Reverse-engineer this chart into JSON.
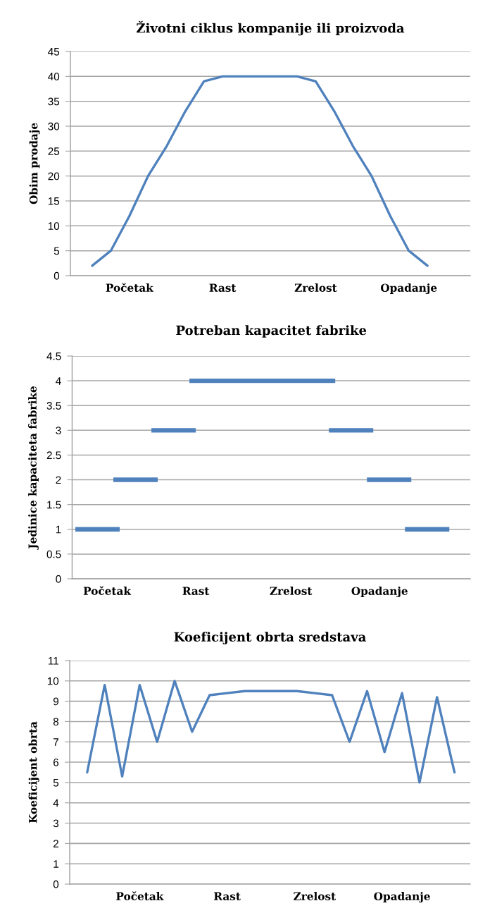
{
  "chart_data": [
    {
      "type": "line",
      "title": "Životni ciklus kompanije ili proizvoda",
      "ylabel": "Obim prodaje",
      "grid": "y",
      "ylim": [
        0,
        45
      ],
      "yticks": [
        0,
        5,
        10,
        15,
        20,
        25,
        30,
        35,
        40,
        45
      ],
      "categories": [
        null,
        null,
        "Početak",
        null,
        null,
        null,
        null,
        "Rast",
        null,
        null,
        null,
        null,
        "Zrelost",
        null,
        null,
        null,
        null,
        "Opadanje",
        null
      ],
      "series": [
        {
          "color": "#4f81bd",
          "values": [
            2,
            5,
            12,
            20,
            26,
            33,
            39,
            40,
            40,
            40,
            40,
            40,
            39,
            33,
            26,
            20,
            12,
            5,
            2
          ]
        }
      ]
    },
    {
      "type": "line",
      "title": "Potreban kapacitet fabrike",
      "ylabel": "Jedinice kapaciteta fabrike",
      "grid": "y",
      "ylim": [
        0,
        4.5
      ],
      "yticks": [
        0,
        0.5,
        1,
        1.5,
        2,
        2.5,
        3,
        3.5,
        4,
        4.5
      ],
      "categories": [
        null,
        null,
        null,
        null,
        null,
        "Početak",
        null,
        null,
        null,
        null,
        null,
        null,
        null,
        null,
        null,
        null,
        null,
        null,
        null,
        "Rast",
        null,
        null,
        null,
        null,
        null,
        null,
        null,
        null,
        null,
        null,
        null,
        null,
        null,
        null,
        "Zrelost",
        null,
        null,
        null,
        null,
        null,
        null,
        null,
        null,
        null,
        null,
        null,
        null,
        null,
        "Opadanje",
        null,
        null,
        null,
        null,
        null,
        null,
        null,
        null,
        null,
        null,
        null
      ],
      "series": [
        {
          "color": "#4f81bd",
          "values": [
            1,
            1,
            1,
            1,
            1,
            1,
            1,
            1,
            null,
            null,
            null,
            null,
            3,
            3,
            3,
            3,
            3,
            3,
            3,
            3,
            null,
            null,
            null,
            null,
            null,
            null,
            null,
            null,
            null,
            null,
            null,
            null,
            null,
            null,
            null,
            null,
            null,
            null,
            null,
            null,
            3,
            3,
            3,
            3,
            3,
            3,
            3,
            3,
            null,
            null,
            null,
            null,
            1,
            1,
            1,
            1,
            1,
            1,
            1,
            1
          ]
        },
        {
          "color": "#4f81bd",
          "values": [
            null,
            null,
            null,
            null,
            null,
            null,
            2,
            2,
            2,
            2,
            2,
            2,
            2,
            2,
            null,
            null,
            null,
            null,
            4,
            4,
            4,
            4,
            4,
            4,
            4,
            4,
            4,
            4,
            4,
            4,
            4,
            4,
            4,
            4,
            4,
            4,
            4,
            4,
            4,
            4,
            4,
            4,
            null,
            null,
            null,
            null,
            2,
            2,
            2,
            2,
            2,
            2,
            2,
            2,
            null,
            null,
            null,
            null,
            null,
            null
          ]
        }
      ]
    },
    {
      "type": "line",
      "title": "Koeficijent obrta sredstava",
      "ylabel": "Koeficijent obrta",
      "grid": "y",
      "ylim": [
        0,
        11
      ],
      "yticks": [
        0,
        1,
        2,
        3,
        4,
        5,
        6,
        7,
        8,
        9,
        10,
        11
      ],
      "categories": [
        null,
        null,
        null,
        "Početak",
        null,
        null,
        null,
        null,
        "Rast",
        null,
        null,
        null,
        null,
        "Zrelost",
        null,
        null,
        null,
        null,
        "Opadanje",
        null,
        null,
        null
      ],
      "series": [
        {
          "color": "#4f81bd",
          "values": [
            5.5,
            9.8,
            5.3,
            9.8,
            7.0,
            10.0,
            7.5,
            9.3,
            9.4,
            9.5,
            9.5,
            9.5,
            9.5,
            9.4,
            9.3,
            7.0,
            9.5,
            6.5,
            9.4,
            5.0,
            9.2,
            5.5
          ]
        }
      ]
    }
  ]
}
